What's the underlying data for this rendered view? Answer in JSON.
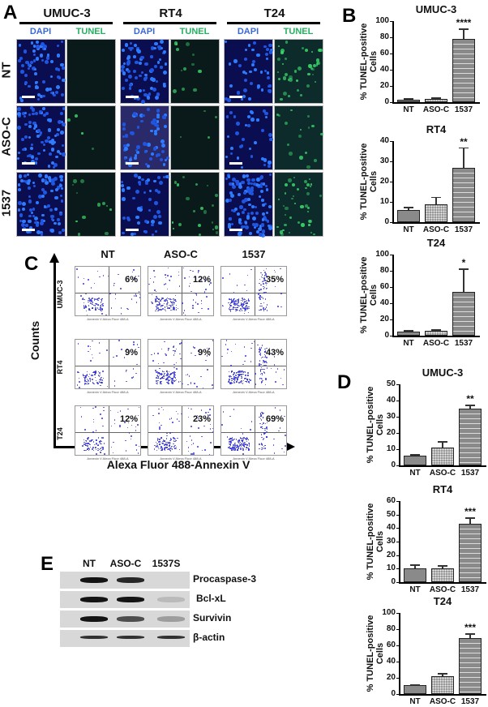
{
  "panelA": {
    "letter": "A",
    "cell_lines": [
      "UMUC-3",
      "RT4",
      "T24"
    ],
    "stains": [
      "DAPI",
      "TUNEL"
    ],
    "rows": [
      "NT",
      "ASO-C",
      "1537"
    ]
  },
  "panelB": {
    "letter": "B",
    "ylabel": "% TUNEL-positive Cells"
  },
  "panelC": {
    "letter": "C",
    "columns": [
      "NT",
      "ASO-C",
      "1537"
    ],
    "rows": [
      "UMUC-3",
      "RT4",
      "T24"
    ],
    "y_axis_label": "Counts",
    "x_axis_label": "Alexa Fluor 488-Annexin V",
    "plot_xlabel": "Annexin V Alexa Fluor 488-A",
    "quadrants": [
      "Q1",
      "Q2",
      "Q3",
      "Q4"
    ],
    "percentages": [
      [
        "6%",
        "12%",
        "35%"
      ],
      [
        "9%",
        "9%",
        "43%"
      ],
      [
        "12%",
        "23%",
        "69%"
      ]
    ]
  },
  "panelD": {
    "letter": "D",
    "ylabel_line1": "% Annexin V",
    "ylabel_line2": "-positive Cells"
  },
  "panelE": {
    "letter": "E",
    "lanes": [
      "NT",
      "ASO-C",
      "1537S"
    ],
    "proteins": [
      "Procaspase-3",
      "Bcl-xL",
      "Survivin",
      "β-actin"
    ]
  },
  "chart_data": [
    {
      "type": "bar",
      "panel": "B",
      "title": "UMUC-3",
      "ylabel": "% TUNEL-positive Cells",
      "categories": [
        "NT",
        "ASO-C",
        "1537"
      ],
      "values": [
        3,
        4,
        78
      ],
      "errors": [
        2,
        2,
        13
      ],
      "significance": [
        "",
        "",
        "****"
      ],
      "ylim": [
        0,
        100
      ],
      "yticks": [
        0,
        20,
        40,
        60,
        80,
        100
      ]
    },
    {
      "type": "bar",
      "panel": "B",
      "title": "RT4",
      "ylabel": "% TUNEL-positive Cells",
      "categories": [
        "NT",
        "ASO-C",
        "1537"
      ],
      "values": [
        6,
        9,
        27
      ],
      "errors": [
        1.5,
        3.5,
        10
      ],
      "significance": [
        "",
        "",
        "**"
      ],
      "ylim": [
        0,
        40
      ],
      "yticks": [
        0,
        10,
        20,
        30,
        40
      ]
    },
    {
      "type": "bar",
      "panel": "B",
      "title": "T24",
      "ylabel": "% TUNEL-positive Cells",
      "categories": [
        "NT",
        "ASO-C",
        "1537"
      ],
      "values": [
        5,
        6,
        54
      ],
      "errors": [
        2,
        2,
        29
      ],
      "significance": [
        "",
        "",
        "*"
      ],
      "ylim": [
        0,
        100
      ],
      "yticks": [
        0,
        20,
        40,
        60,
        80,
        100
      ]
    },
    {
      "type": "bar",
      "panel": "D",
      "title": "UMUC-3",
      "ylabel": "% Annexin V -positive Cells",
      "categories": [
        "NT",
        "ASO-C",
        "1537"
      ],
      "values": [
        6,
        11,
        35
      ],
      "errors": [
        1,
        4,
        2.5
      ],
      "significance": [
        "",
        "",
        "**"
      ],
      "ylim": [
        0,
        50
      ],
      "yticks": [
        0,
        10,
        20,
        30,
        40,
        50
      ]
    },
    {
      "type": "bar",
      "panel": "D",
      "title": "RT4",
      "ylabel": "% Annexin V -positive Cells",
      "categories": [
        "NT",
        "ASO-C",
        "1537"
      ],
      "values": [
        10,
        10,
        43
      ],
      "errors": [
        3,
        2.5,
        5
      ],
      "significance": [
        "",
        "",
        "***"
      ],
      "ylim": [
        0,
        60
      ],
      "yticks": [
        0,
        10,
        20,
        30,
        40,
        50,
        60
      ]
    },
    {
      "type": "bar",
      "panel": "D",
      "title": "T24",
      "ylabel": "% Annexin V -positive Cells",
      "categories": [
        "NT",
        "ASO-C",
        "1537"
      ],
      "values": [
        11,
        22,
        69
      ],
      "errors": [
        1,
        4,
        6
      ],
      "significance": [
        "",
        "",
        "***"
      ],
      "ylim": [
        0,
        100
      ],
      "yticks": [
        0,
        20,
        40,
        60,
        80,
        100
      ]
    }
  ]
}
